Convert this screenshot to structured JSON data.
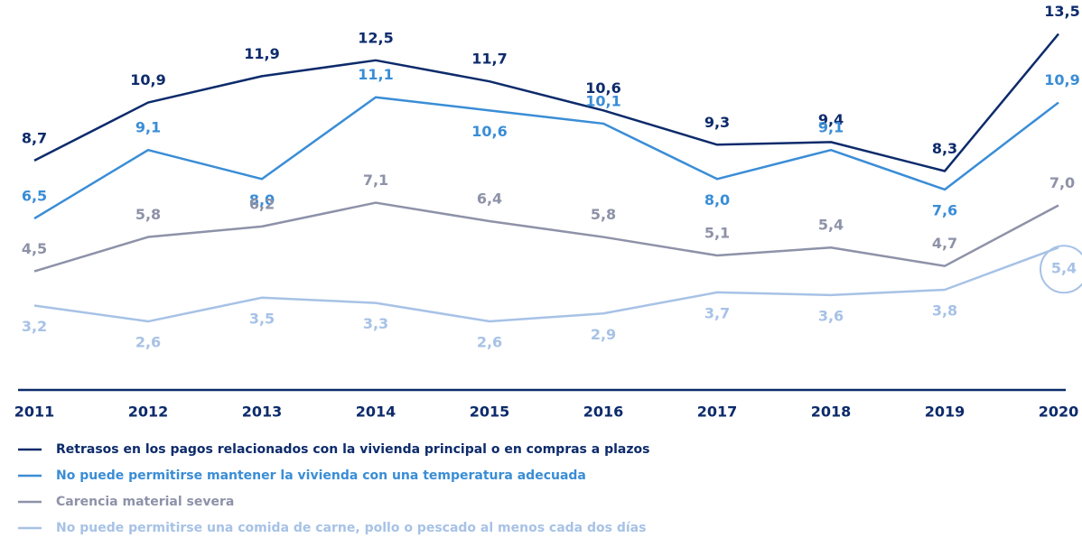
{
  "chart_data": {
    "type": "line",
    "categories": [
      "2011",
      "2012",
      "2013",
      "2014",
      "2015",
      "2016",
      "2017",
      "2018",
      "2019",
      "2020"
    ],
    "ylim": [
      0,
      14
    ],
    "series": [
      {
        "name": "Retrasos en los pagos relacionados con la vivienda principal o en compras a plazos",
        "color": "#0d2b6b",
        "values": [
          8.7,
          10.9,
          11.9,
          12.5,
          11.7,
          10.6,
          9.3,
          9.4,
          8.3,
          13.5
        ],
        "value_labels": [
          "8,7",
          "10,9",
          "11,9",
          "12,5",
          "11,7",
          "10,6",
          "9,3",
          "9,4",
          "8,3",
          "13,5"
        ]
      },
      {
        "name": "No puede permitirse mantener la vivienda con una temperatura adecuada",
        "color": "#3a8dd6",
        "values": [
          6.5,
          9.1,
          8.0,
          11.1,
          10.6,
          10.1,
          8.0,
          9.1,
          7.6,
          10.9
        ],
        "value_labels": [
          "6,5",
          "9,1",
          "8,0",
          "11,1",
          "10,6",
          "10,1",
          "8,0",
          "9,1",
          "7,6",
          "10,9"
        ]
      },
      {
        "name": "Carencia material severa",
        "color": "#8e92a8",
        "values": [
          4.5,
          5.8,
          6.2,
          7.1,
          6.4,
          5.8,
          5.1,
          5.4,
          4.7,
          7.0
        ],
        "value_labels": [
          "4,5",
          "5,8",
          "6,2",
          "7,1",
          "6,4",
          "5,8",
          "5,1",
          "5,4",
          "4,7",
          "7,0"
        ]
      },
      {
        "name": "No puede permitirse una comida de carne, pollo o pescado al menos cada dos días",
        "color": "#a7c2e6",
        "values": [
          3.2,
          2.6,
          3.5,
          3.3,
          2.6,
          2.9,
          3.7,
          3.6,
          3.8,
          5.4
        ],
        "value_labels": [
          "3,2",
          "2,6",
          "3,5",
          "3,3",
          "2,6",
          "2,9",
          "3,7",
          "3,6",
          "3,8",
          "5,4"
        ]
      }
    ]
  }
}
